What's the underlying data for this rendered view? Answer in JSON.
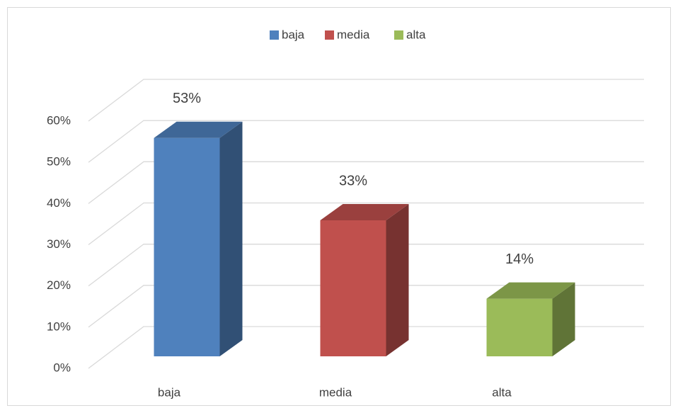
{
  "chart_data": {
    "type": "bar3d",
    "categories": [
      "baja",
      "media",
      "alta"
    ],
    "values": [
      53,
      33,
      14
    ],
    "value_labels": [
      "53%",
      "33%",
      "14%"
    ],
    "colors": [
      "#4f81bd",
      "#c0504d",
      "#9bbb59"
    ],
    "ylim": [
      0,
      60
    ],
    "yticks": [
      {
        "value": 0,
        "label": "0%"
      },
      {
        "value": 10,
        "label": "10%"
      },
      {
        "value": 20,
        "label": "20%"
      },
      {
        "value": 30,
        "label": "30%"
      },
      {
        "value": 40,
        "label": "40%"
      },
      {
        "value": 50,
        "label": "50%"
      },
      {
        "value": 60,
        "label": "60%"
      }
    ],
    "grid": true,
    "legend": "top"
  }
}
